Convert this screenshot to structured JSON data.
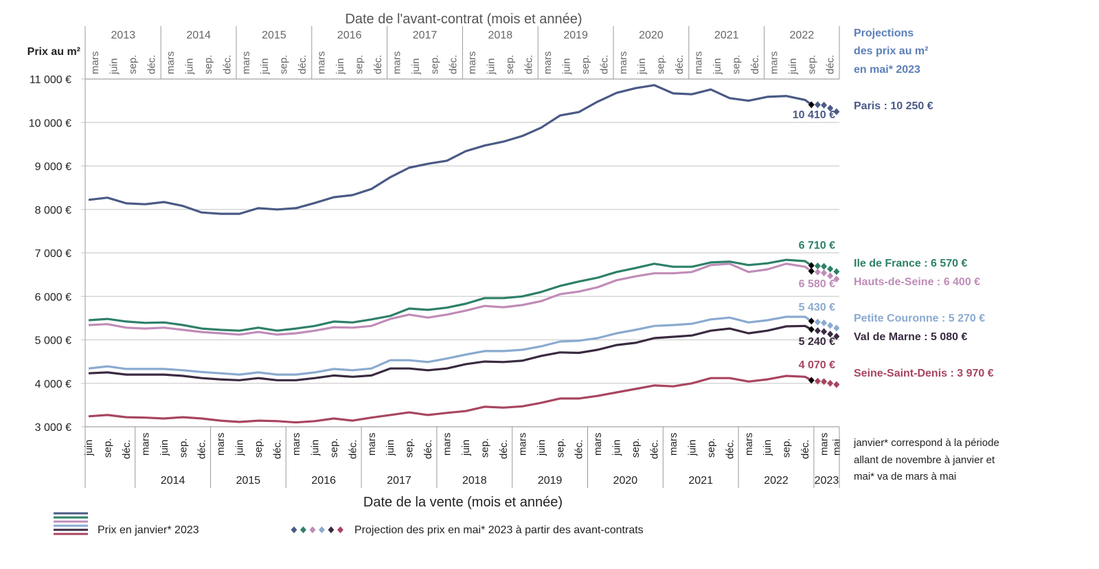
{
  "chart_data": {
    "type": "line",
    "title": "",
    "ylabel": "Prix au m²",
    "xlabel": "Date de la vente (mois et année)",
    "x2label": "Date de l'avant-contrat (mois et année)",
    "ylim": [
      3000,
      11000
    ],
    "yticks": [
      "3 000 €",
      "4 000 €",
      "5 000 €",
      "6 000 €",
      "7 000 €",
      "8 000 €",
      "9 000 €",
      "10 000 €",
      "11 000 €"
    ],
    "ytick_values": [
      3000,
      4000,
      5000,
      6000,
      7000,
      8000,
      9000,
      10000,
      11000
    ],
    "grid": true,
    "month_labels": {
      "3": "mars",
      "5": "mai",
      "6": "juin",
      "9": "sep.",
      "12": "déc."
    },
    "bottom_years": [
      "2014",
      "2015",
      "2016",
      "2017",
      "2018",
      "2019",
      "2020",
      "2021",
      "2022",
      "2023"
    ],
    "top_years": [
      "2013",
      "2014",
      "2015",
      "2016",
      "2017",
      "2018",
      "2019",
      "2020",
      "2021",
      "2022"
    ],
    "x": [
      "2013-06",
      "2013-09",
      "2013-12",
      "2014-03",
      "2014-06",
      "2014-09",
      "2014-12",
      "2015-03",
      "2015-06",
      "2015-09",
      "2015-12",
      "2016-03",
      "2016-06",
      "2016-09",
      "2016-12",
      "2017-03",
      "2017-06",
      "2017-09",
      "2017-12",
      "2018-03",
      "2018-06",
      "2018-09",
      "2018-12",
      "2019-03",
      "2019-06",
      "2019-09",
      "2019-12",
      "2020-03",
      "2020-06",
      "2020-09",
      "2020-12",
      "2021-03",
      "2021-06",
      "2021-09",
      "2021-12",
      "2022-03",
      "2022-06",
      "2022-09",
      "2022-12",
      "2023-01"
    ],
    "projection_x": [
      "2023-02",
      "2023-03",
      "2023-04",
      "2023-05"
    ],
    "series": [
      {
        "name": "Paris",
        "color": "#4a5a86",
        "values": [
          8220,
          8270,
          8140,
          8120,
          8170,
          8080,
          7930,
          7900,
          7900,
          8030,
          8000,
          8030,
          8150,
          8280,
          8330,
          8470,
          8740,
          8960,
          9050,
          9120,
          9340,
          9470,
          9560,
          9690,
          9880,
          10160,
          10240,
          10480,
          10680,
          10790,
          10860,
          10670,
          10650,
          10760,
          10560,
          10500,
          10590,
          10610,
          10520,
          10410
        ],
        "projection": [
          10410,
          10400,
          10330,
          10250
        ],
        "jan_label": "10 410 €",
        "right_label": "Paris : 10 250 €"
      },
      {
        "name": "Ile de France",
        "color": "#2e8069",
        "values": [
          5450,
          5480,
          5420,
          5390,
          5400,
          5340,
          5260,
          5230,
          5210,
          5280,
          5210,
          5260,
          5320,
          5420,
          5400,
          5470,
          5550,
          5720,
          5690,
          5740,
          5830,
          5960,
          5960,
          6000,
          6100,
          6240,
          6340,
          6430,
          6560,
          6650,
          6750,
          6680,
          6680,
          6780,
          6800,
          6720,
          6760,
          6840,
          6810,
          6710
        ],
        "projection": [
          6700,
          6690,
          6630,
          6570
        ],
        "jan_label": "6 710 €",
        "right_label": "Ile de France : 6 570 €"
      },
      {
        "name": "Hauts-de-Seine",
        "color": "#c08cb8",
        "values": [
          5340,
          5360,
          5280,
          5260,
          5280,
          5230,
          5180,
          5150,
          5120,
          5180,
          5120,
          5150,
          5210,
          5290,
          5280,
          5320,
          5480,
          5580,
          5510,
          5580,
          5670,
          5780,
          5750,
          5800,
          5890,
          6050,
          6110,
          6210,
          6370,
          6460,
          6530,
          6530,
          6560,
          6720,
          6750,
          6560,
          6620,
          6750,
          6680,
          6580
        ],
        "projection": [
          6560,
          6540,
          6470,
          6400
        ],
        "jan_label": "6 580 €",
        "right_label": "Hauts-de-Seine : 6 400 €"
      },
      {
        "name": "Petite Couronne",
        "color": "#8aaad0",
        "values": [
          4340,
          4390,
          4330,
          4330,
          4330,
          4300,
          4260,
          4230,
          4200,
          4250,
          4200,
          4200,
          4250,
          4330,
          4300,
          4340,
          4530,
          4530,
          4490,
          4570,
          4660,
          4740,
          4740,
          4770,
          4850,
          4960,
          4980,
          5040,
          5150,
          5230,
          5320,
          5340,
          5370,
          5470,
          5510,
          5400,
          5450,
          5530,
          5530,
          5430
        ],
        "projection": [
          5410,
          5390,
          5330,
          5270
        ],
        "jan_label": "5 430 €",
        "right_label": "Petite Couronne : 5 270 €"
      },
      {
        "name": "Val de Marne",
        "color": "#3a2a40",
        "values": [
          4230,
          4250,
          4200,
          4200,
          4200,
          4170,
          4120,
          4090,
          4070,
          4120,
          4070,
          4070,
          4120,
          4180,
          4150,
          4180,
          4340,
          4340,
          4300,
          4340,
          4440,
          4500,
          4490,
          4520,
          4630,
          4710,
          4700,
          4770,
          4880,
          4930,
          5040,
          5070,
          5100,
          5210,
          5260,
          5150,
          5210,
          5310,
          5320,
          5240
        ],
        "projection": [
          5210,
          5190,
          5130,
          5080
        ],
        "jan_label": "5 240 €",
        "right_label": "Val de Marne : 5 080 €"
      },
      {
        "name": "Seine-Saint-Denis",
        "color": "#a84560",
        "values": [
          3240,
          3270,
          3220,
          3210,
          3190,
          3220,
          3190,
          3140,
          3110,
          3140,
          3130,
          3100,
          3130,
          3190,
          3140,
          3210,
          3270,
          3330,
          3270,
          3320,
          3360,
          3460,
          3440,
          3470,
          3550,
          3650,
          3650,
          3710,
          3790,
          3870,
          3950,
          3930,
          4000,
          4120,
          4120,
          4040,
          4090,
          4170,
          4150,
          4070
        ],
        "projection": [
          4050,
          4040,
          4000,
          3970
        ],
        "jan_label": "4 070 €",
        "right_label": "Seine-Saint-Denis : 3 970 €"
      }
    ],
    "projection_heading": [
      "Projections",
      "des prix au m²",
      "en mai* 2023"
    ],
    "projection_heading_color": "#5b7fb8",
    "note": [
      "janvier* correspond à la période",
      "allant de novembre à janvier et",
      "mai* va de mars à mai"
    ],
    "legend": {
      "lines_label": "Prix en janvier* 2023",
      "diamonds_label": "Projection des prix en mai* 2023 à partir des avant-contrats"
    }
  }
}
